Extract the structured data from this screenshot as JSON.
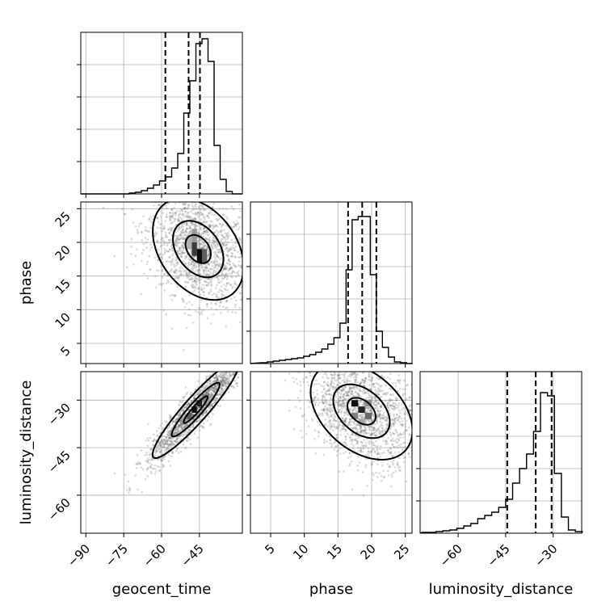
{
  "chart_data": {
    "type": "corner",
    "parameters": [
      {
        "name": "geocent_time",
        "range": [
          -92,
          -28
        ],
        "ticks": [
          -90,
          -75,
          -60,
          -45
        ]
      },
      {
        "name": "phase",
        "range": [
          2,
          26
        ],
        "ticks": [
          5,
          10,
          15,
          20,
          25
        ]
      },
      {
        "name": "luminosity_distance",
        "range": [
          -72,
          -21
        ],
        "ticks": [
          -60,
          -45,
          -30
        ]
      }
    ],
    "grid": true,
    "quantile_lines": "dashed",
    "histograms": [
      {
        "parameter": "geocent_time",
        "bin_edges": [
          -92,
          -89.6,
          -87.2,
          -84.8,
          -82.4,
          -80,
          -77.6,
          -75.2,
          -72.8,
          -70.4,
          -68,
          -65.6,
          -63.2,
          -60.8,
          -58.4,
          -56,
          -53.6,
          -51.2,
          -48.8,
          -46.4,
          -44,
          -41.6,
          -39.2,
          -36.8,
          -34.4,
          -32,
          -29.6
        ],
        "counts": [
          0,
          0,
          0,
          0,
          0,
          0,
          0,
          0,
          0.005,
          0.01,
          0.02,
          0.035,
          0.055,
          0.08,
          0.105,
          0.16,
          0.25,
          0.5,
          0.7,
          0.93,
          0.96,
          0.82,
          0.3,
          0.09,
          0.015,
          0
        ],
        "quantiles": [
          -58.5,
          -49.3,
          -44.8
        ]
      },
      {
        "parameter": "phase",
        "bin_edges": [
          3.6,
          4.5,
          5.4,
          6.3,
          7.2,
          8.1,
          9,
          9.9,
          10.8,
          11.7,
          12.6,
          13.5,
          14.4,
          15.3,
          16.2,
          17.1,
          18,
          18.9,
          19.8,
          20.7,
          21.6,
          22.5,
          23.4,
          24.3,
          25.2,
          26.1
        ],
        "counts": [
          0.005,
          0.01,
          0.015,
          0.02,
          0.025,
          0.03,
          0.035,
          0.045,
          0.055,
          0.07,
          0.09,
          0.12,
          0.16,
          0.25,
          0.58,
          0.89,
          0.91,
          0.91,
          0.55,
          0.2,
          0.1,
          0.04,
          0.01,
          0.005,
          0
        ],
        "quantiles": [
          16.5,
          18.6,
          20.7
        ]
      },
      {
        "parameter": "luminosity_distance",
        "bin_edges": [
          -71.4,
          -69.2,
          -67,
          -64.8,
          -62.6,
          -60.4,
          -58.2,
          -56,
          -53.8,
          -51.6,
          -49.4,
          -47.2,
          -45,
          -42.8,
          -40.6,
          -38.4,
          -36.2,
          -34,
          -31.8,
          -29.6,
          -27.4,
          -25.2,
          -23,
          -20.8
        ],
        "counts": [
          0.005,
          0.005,
          0.01,
          0.015,
          0.02,
          0.03,
          0.045,
          0.06,
          0.09,
          0.11,
          0.13,
          0.16,
          0.21,
          0.31,
          0.4,
          0.49,
          0.63,
          0.87,
          0.85,
          0.37,
          0.1,
          0.02,
          0.01
        ],
        "quantiles": [
          -44.5,
          -35.5,
          -30.5
        ]
      }
    ],
    "pairs": [
      {
        "x": "geocent_time",
        "y": "phase",
        "center": [
          -45.5,
          19
        ],
        "scatter_sd": [
          10,
          4.2
        ],
        "correlation": -0.35,
        "contour_sigmas": [
          0.5,
          1.0,
          1.8
        ],
        "density_cells": [
          {
            "x": [
              -48,
              -46
            ],
            "y": [
              18,
              20
            ],
            "level": 0.75
          },
          {
            "x": [
              -46,
              -44
            ],
            "y": [
              17,
              19
            ],
            "level": 0.95
          },
          {
            "x": [
              -44,
              -42
            ],
            "y": [
              17,
              19
            ],
            "level": 0.6
          },
          {
            "x": [
              -48,
              -46
            ],
            "y": [
              20,
              22
            ],
            "level": 0.35
          },
          {
            "x": [
              -50,
              -48
            ],
            "y": [
              19,
              21
            ],
            "level": 0.25
          }
        ]
      },
      {
        "x": "geocent_time",
        "y": "luminosity_distance",
        "center": [
          -46.5,
          -33
        ],
        "scatter_sd": [
          9.5,
          8.5
        ],
        "correlation": 0.93,
        "contour_sigmas": [
          0.5,
          1.0,
          1.8
        ],
        "density_cells": [
          {
            "x": [
              -48,
              -46
            ],
            "y": [
              -34,
              -32
            ],
            "level": 0.95
          },
          {
            "x": [
              -46,
              -44
            ],
            "y": [
              -32,
              -30
            ],
            "level": 0.85
          },
          {
            "x": [
              -50,
              -48
            ],
            "y": [
              -36,
              -34
            ],
            "level": 0.6
          },
          {
            "x": [
              -44,
              -42
            ],
            "y": [
              -30,
              -28
            ],
            "level": 0.45
          }
        ]
      },
      {
        "x": "phase",
        "y": "luminosity_distance",
        "center": [
          18.5,
          -33.5
        ],
        "scatter_sd": [
          4.2,
          8.5
        ],
        "correlation": -0.4,
        "contour_sigmas": [
          0.5,
          1.0,
          1.8
        ],
        "density_cells": [
          {
            "x": [
              17,
              18
            ],
            "y": [
              -32,
              -30
            ],
            "level": 0.95
          },
          {
            "x": [
              18,
              19
            ],
            "y": [
              -34,
              -32
            ],
            "level": 0.85
          },
          {
            "x": [
              19,
              20
            ],
            "y": [
              -36,
              -34
            ],
            "level": 0.55
          },
          {
            "x": [
              17,
              18
            ],
            "y": [
              -36,
              -34
            ],
            "level": 0.45
          },
          {
            "x": [
              19,
              20
            ],
            "y": [
              -32,
              -30
            ],
            "level": 0.4
          },
          {
            "x": [
              18,
              19
            ],
            "y": [
              -38,
              -36
            ],
            "level": 0.3
          }
        ]
      }
    ]
  }
}
